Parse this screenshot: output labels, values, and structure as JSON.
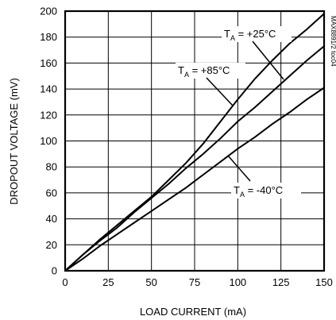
{
  "chart_data": {
    "type": "line",
    "title": "",
    "xlabel": "LOAD CURRENT (mA)",
    "ylabel": "DROPOUT VOLTAGE (mV)",
    "xlim": [
      0,
      150
    ],
    "ylim": [
      0,
      200
    ],
    "x_ticks": [
      0,
      25,
      50,
      75,
      100,
      125,
      150
    ],
    "y_ticks": [
      0,
      20,
      40,
      60,
      80,
      100,
      120,
      140,
      160,
      180,
      200
    ],
    "x_tick_labels": [
      "0",
      "25",
      "50",
      "75",
      "100",
      "125",
      "150"
    ],
    "y_tick_labels": [
      "0",
      "20",
      "40",
      "60",
      "80",
      "100",
      "120",
      "140",
      "160",
      "180",
      "200"
    ],
    "grid": true,
    "series": [
      {
        "name": "TA = +85°C",
        "x": [
          0,
          10,
          20,
          30,
          40,
          50,
          60,
          70,
          80,
          90,
          100,
          110,
          120,
          130,
          140,
          150
        ],
        "y": [
          0,
          12,
          24,
          35,
          46,
          57,
          70,
          83,
          98,
          115,
          132,
          148,
          162,
          175,
          186,
          198
        ]
      },
      {
        "name": "TA = +25°C",
        "x": [
          0,
          10,
          20,
          30,
          40,
          50,
          60,
          70,
          80,
          90,
          100,
          110,
          120,
          130,
          140,
          150
        ],
        "y": [
          0,
          12,
          23,
          33,
          45,
          56,
          67,
          79,
          90,
          102,
          115,
          126,
          138,
          150,
          162,
          173
        ]
      },
      {
        "name": "TA = -40°C",
        "x": [
          0,
          10,
          20,
          30,
          40,
          50,
          60,
          70,
          80,
          90,
          100,
          110,
          120,
          130,
          140,
          150
        ],
        "y": [
          0,
          9,
          19,
          28,
          37,
          46,
          55,
          64,
          74,
          84,
          94,
          103,
          113,
          122,
          132,
          141
        ]
      }
    ],
    "annotations": [
      {
        "main": "T",
        "sub": "A",
        "rest": " = +25°C",
        "series": "TA = +25°C"
      },
      {
        "main": "T",
        "sub": "A",
        "rest": " = +85°C",
        "series": "TA = +85°C"
      },
      {
        "main": "T",
        "sub": "A",
        "rest": " = -40°C",
        "series": "TA = -40°C"
      }
    ],
    "watermark": "MAX8891/2 toc04"
  }
}
